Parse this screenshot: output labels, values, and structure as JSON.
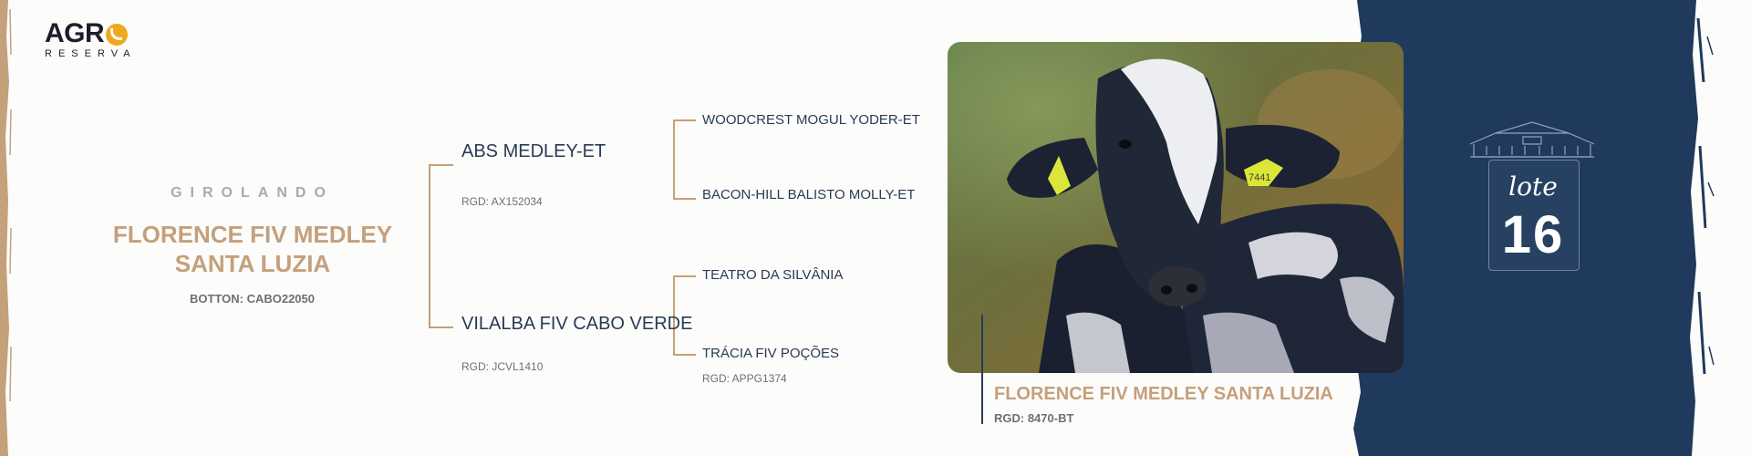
{
  "logo": {
    "word": "AGR",
    "subtitle": "RESERVA"
  },
  "animal": {
    "breed": "GIROLANDO",
    "name_line1": "FLORENCE FIV MEDLEY",
    "name_line2": "SANTA LUZIA",
    "botton": "BOTTON: CABO22050"
  },
  "pedigree": {
    "sire": {
      "name": "ABS MEDLEY-ET",
      "rgd": "RGD: AX152034"
    },
    "dam": {
      "name": "VILALBA FIV CABO VERDE",
      "rgd": "RGD: JCVL1410"
    },
    "sire_sire": {
      "name": "WOODCREST MOGUL YODER-ET"
    },
    "sire_dam": {
      "name": "BACON-HILL BALISTO MOLLY-ET"
    },
    "dam_sire": {
      "name": "TEATRO DA SILVÂNIA"
    },
    "dam_dam": {
      "name": "TRÁCIA FIV POÇÕES",
      "rgd": "RGD: APPG1374"
    }
  },
  "photo": {
    "title": "FLORENCE FIV MEDLEY SANTA LUZIA",
    "rgd": "RGD: 8470-BT",
    "ear_tag": "7441"
  },
  "lote": {
    "word": "lote",
    "number": "16"
  },
  "colors": {
    "gold": "#c4a07b",
    "navy": "#2a3b54",
    "panel": "#1f3a5c",
    "logo_accent": "#f0a91e"
  }
}
